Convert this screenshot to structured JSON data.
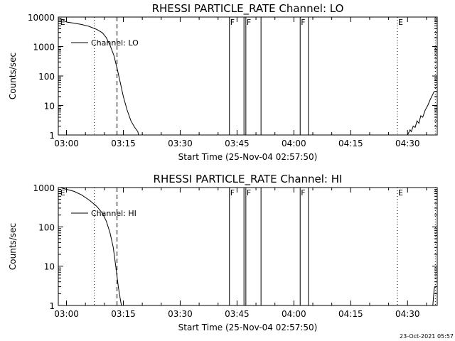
{
  "chart_data": [
    {
      "type": "line",
      "title": "RHESSI PARTICLE_RATE Channel: LO",
      "xlabel": "Start Time (25-Nov-04 02:57:50)",
      "ylabel": "Counts/sec",
      "yscale": "log",
      "ylim": [
        1,
        10000
      ],
      "xlim": [
        "02:57:50",
        "04:37:50"
      ],
      "xticks": [
        "03:00",
        "03:15",
        "03:30",
        "03:45",
        "04:00",
        "04:15",
        "04:30"
      ],
      "yticks": [
        "1",
        "10",
        "100",
        "1000",
        "10000"
      ],
      "legend": {
        "position": "top-left",
        "entries": [
          "Channel: LO"
        ]
      },
      "series": [
        {
          "name": "Channel: LO",
          "points": [
            [
              "02:58:20",
              9000
            ],
            [
              "03:00:00",
              6800
            ],
            [
              "03:02:00",
              6200
            ],
            [
              "03:04:00",
              5600
            ],
            [
              "03:06:00",
              4800
            ],
            [
              "03:08:00",
              3800
            ],
            [
              "03:09:30",
              2900
            ],
            [
              "03:10:30",
              2000
            ],
            [
              "03:11:30",
              1100
            ],
            [
              "03:12:30",
              500
            ],
            [
              "03:13:30",
              150
            ],
            [
              "03:14:20",
              50
            ],
            [
              "03:15:00",
              20
            ],
            [
              "03:16:00",
              7
            ],
            [
              "03:17:00",
              3
            ],
            [
              "03:18:00",
              1.8
            ],
            [
              "03:18:50",
              1.3
            ],
            [
              "03:19:00",
              1.0
            ]
          ]
        },
        {
          "name": "",
          "points": [
            [
              "04:30:00",
              1.0
            ],
            [
              "04:30:40",
              1.5
            ],
            [
              "04:31:00",
              1.3
            ],
            [
              "04:31:30",
              2.0
            ],
            [
              "04:32:00",
              1.8
            ],
            [
              "04:32:30",
              3.0
            ],
            [
              "04:33:00",
              2.5
            ],
            [
              "04:33:30",
              4.5
            ],
            [
              "04:34:00",
              4.0
            ],
            [
              "04:34:40",
              7.0
            ],
            [
              "04:35:20",
              10
            ],
            [
              "04:36:00",
              16
            ],
            [
              "04:36:40",
              24
            ],
            [
              "04:37:00",
              30
            ]
          ]
        }
      ],
      "vlines_dotted": [
        "03:07:20",
        "04:27:20",
        "04:37:20"
      ],
      "vlines_dashed": [
        "03:13:20"
      ],
      "flare_boxes": [
        [
          "03:43:00",
          "03:46:50"
        ],
        [
          "03:47:20",
          "03:51:20"
        ],
        [
          "04:01:40",
          "04:03:50"
        ]
      ],
      "markers": [
        {
          "text": "E",
          "at": "02:58:10"
        },
        {
          "text": "F",
          "at": "03:43:00"
        },
        {
          "text": "F",
          "at": "03:47:20"
        },
        {
          "text": "F",
          "at": "04:01:40"
        },
        {
          "text": "E",
          "at": "04:27:20"
        }
      ]
    },
    {
      "type": "line",
      "title": "RHESSI PARTICLE_RATE Channel: HI",
      "xlabel": "Start Time (25-Nov-04 02:57:50)",
      "ylabel": "Counts/sec",
      "yscale": "log",
      "ylim": [
        1,
        1000
      ],
      "xlim": [
        "02:57:50",
        "04:37:50"
      ],
      "xticks": [
        "03:00",
        "03:15",
        "03:30",
        "03:45",
        "04:00",
        "04:15",
        "04:30"
      ],
      "yticks": [
        "1",
        "10",
        "100",
        "1000"
      ],
      "legend": {
        "position": "top-left",
        "entries": [
          "Channel: HI"
        ]
      },
      "series": [
        {
          "name": "Channel: HI",
          "points": [
            [
              "02:58:20",
              1000
            ],
            [
              "03:00:00",
              900
            ],
            [
              "03:02:00",
              800
            ],
            [
              "03:04:00",
              650
            ],
            [
              "03:06:00",
              480
            ],
            [
              "03:08:00",
              330
            ],
            [
              "03:09:30",
              220
            ],
            [
              "03:10:30",
              140
            ],
            [
              "03:11:30",
              70
            ],
            [
              "03:12:20",
              30
            ],
            [
              "03:13:00",
              10
            ],
            [
              "03:13:40",
              3
            ],
            [
              "03:14:10",
              1.5
            ],
            [
              "03:14:30",
              1.0
            ]
          ]
        },
        {
          "name": "",
          "points": [
            [
              "04:36:40",
              1.0
            ],
            [
              "04:37:00",
              2.5
            ],
            [
              "04:37:10",
              3.0
            ]
          ]
        }
      ],
      "vlines_dotted": [
        "03:07:20",
        "04:27:20",
        "04:37:20"
      ],
      "vlines_dashed": [
        "03:13:20"
      ],
      "flare_boxes": [
        [
          "03:43:00",
          "03:46:50"
        ],
        [
          "03:47:20",
          "03:51:20"
        ],
        [
          "04:01:40",
          "04:03:50"
        ]
      ],
      "markers": [
        {
          "text": "E",
          "at": "02:58:10"
        },
        {
          "text": "F",
          "at": "03:43:00"
        },
        {
          "text": "F",
          "at": "03:47:20"
        },
        {
          "text": "F",
          "at": "04:01:40"
        },
        {
          "text": "E",
          "at": "04:27:20"
        }
      ]
    }
  ],
  "footer": {
    "timestamp": "23-Oct-2021 05:57"
  }
}
